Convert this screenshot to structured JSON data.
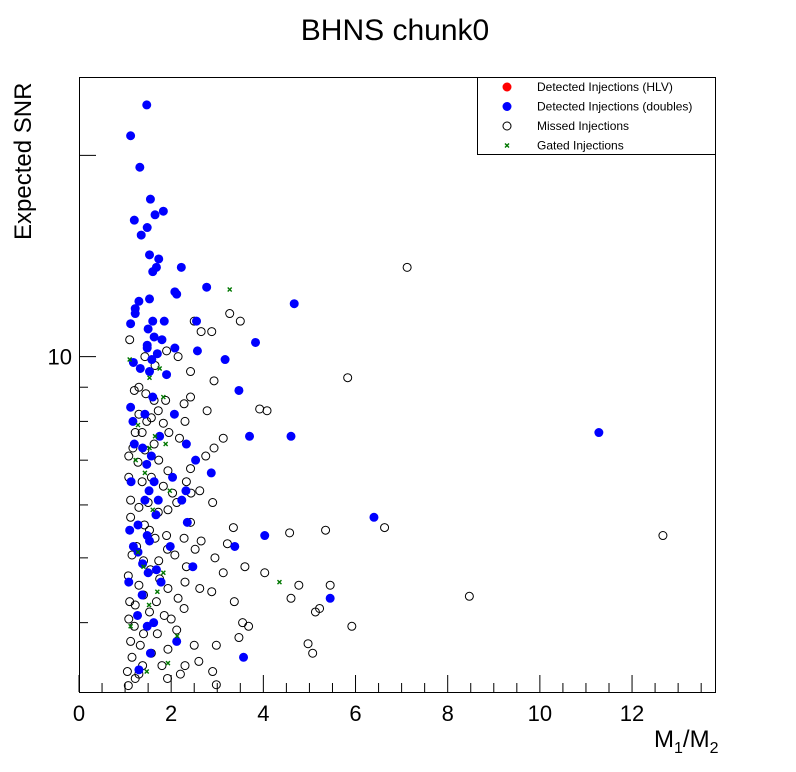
{
  "chart_data": {
    "type": "scatter",
    "title": "BHNS chunk0",
    "xlabel": "M",
    "xlabel_sub1": "1",
    "xlabel_sep": "/M",
    "xlabel_sub2": "2",
    "ylabel": "Expected SNR",
    "xlim": [
      0,
      13.8
    ],
    "ylim": [
      3.15,
      26.2
    ],
    "yscale": "log",
    "x_ticks": [
      0,
      2,
      4,
      6,
      8,
      10,
      12
    ],
    "y_ticks_labeled": [
      10
    ],
    "grid": false,
    "legend_position": "top-right",
    "colors": {
      "hlv": "#ff0000",
      "doubles": "#0000ff",
      "missed": "#000000",
      "gated": "#007700"
    },
    "series": [
      {
        "name": "Detected Injections (HLV)",
        "marker": "filled-circle",
        "points": []
      },
      {
        "name": "Detected Injections (doubles)",
        "marker": "filled-circle",
        "points": [
          [
            1.47,
            23.8
          ],
          [
            1.12,
            21.4
          ],
          [
            1.32,
            19.2
          ],
          [
            1.55,
            17.2
          ],
          [
            1.65,
            16.3
          ],
          [
            1.2,
            16.0
          ],
          [
            1.83,
            16.5
          ],
          [
            1.48,
            15.6
          ],
          [
            1.35,
            15.2
          ],
          [
            1.53,
            14.2
          ],
          [
            1.73,
            14.0
          ],
          [
            1.68,
            13.6
          ],
          [
            1.6,
            13.4
          ],
          [
            2.22,
            13.6
          ],
          [
            2.08,
            12.5
          ],
          [
            2.77,
            12.7
          ],
          [
            2.12,
            12.4
          ],
          [
            1.53,
            12.2
          ],
          [
            1.22,
            11.6
          ],
          [
            1.6,
            11.3
          ],
          [
            1.85,
            11.3
          ],
          [
            2.55,
            11.3
          ],
          [
            4.67,
            12.0
          ],
          [
            1.3,
            12.1
          ],
          [
            1.22,
            11.8
          ],
          [
            1.12,
            11.2
          ],
          [
            1.5,
            11.0
          ],
          [
            1.63,
            10.7
          ],
          [
            1.48,
            10.4
          ],
          [
            1.8,
            10.6
          ],
          [
            2.57,
            10.2
          ],
          [
            1.48,
            10.3
          ],
          [
            1.7,
            10.1
          ],
          [
            2.08,
            10.3
          ],
          [
            3.17,
            9.9
          ],
          [
            3.83,
            10.5
          ],
          [
            1.18,
            9.8
          ],
          [
            1.33,
            9.6
          ],
          [
            1.53,
            9.5
          ],
          [
            1.9,
            9.4
          ],
          [
            1.58,
            9.9
          ],
          [
            3.47,
            8.9
          ],
          [
            1.12,
            8.4
          ],
          [
            1.43,
            8.2
          ],
          [
            1.17,
            8.0
          ],
          [
            2.07,
            8.2
          ],
          [
            1.6,
            8.7
          ],
          [
            3.7,
            7.6
          ],
          [
            4.6,
            7.6
          ],
          [
            1.75,
            7.6
          ],
          [
            2.33,
            7.4
          ],
          [
            1.2,
            7.4
          ],
          [
            1.57,
            7.1
          ],
          [
            11.28,
            7.7
          ],
          [
            1.38,
            7.3
          ],
          [
            2.53,
            7.0
          ],
          [
            2.87,
            6.7
          ],
          [
            1.47,
            6.9
          ],
          [
            2.03,
            6.6
          ],
          [
            1.13,
            6.5
          ],
          [
            1.63,
            6.5
          ],
          [
            2.32,
            6.3
          ],
          [
            1.52,
            6.3
          ],
          [
            1.72,
            6.1
          ],
          [
            1.43,
            6.1
          ],
          [
            2.23,
            6.1
          ],
          [
            1.67,
            5.8
          ],
          [
            6.4,
            5.75
          ],
          [
            2.35,
            5.65
          ],
          [
            1.28,
            5.6
          ],
          [
            4.03,
            5.4
          ],
          [
            1.1,
            5.5
          ],
          [
            1.48,
            5.4
          ],
          [
            1.18,
            5.2
          ],
          [
            1.28,
            5.1
          ],
          [
            1.53,
            5.3
          ],
          [
            1.98,
            5.2
          ],
          [
            3.38,
            5.2
          ],
          [
            2.47,
            4.85
          ],
          [
            1.38,
            4.9
          ],
          [
            1.68,
            4.8
          ],
          [
            1.78,
            4.6
          ],
          [
            5.45,
            4.35
          ],
          [
            1.08,
            4.6
          ],
          [
            1.5,
            4.75
          ],
          [
            1.37,
            4.4
          ],
          [
            1.27,
            4.1
          ],
          [
            1.62,
            4.0
          ],
          [
            1.48,
            3.95
          ],
          [
            2.12,
            3.75
          ],
          [
            3.57,
            3.55
          ],
          [
            1.3,
            3.4
          ],
          [
            1.55,
            3.6
          ]
        ]
      },
      {
        "name": "Missed Injections",
        "marker": "open-circle",
        "points": [
          [
            7.12,
            13.6
          ],
          [
            2.5,
            11.3
          ],
          [
            2.65,
            10.9
          ],
          [
            3.27,
            11.6
          ],
          [
            2.88,
            10.9
          ],
          [
            1.1,
            10.6
          ],
          [
            3.5,
            11.3
          ],
          [
            2.15,
            10.0
          ],
          [
            1.9,
            10.2
          ],
          [
            1.43,
            10.0
          ],
          [
            2.42,
            9.5
          ],
          [
            1.65,
            9.7
          ],
          [
            2.93,
            9.2
          ],
          [
            5.83,
            9.3
          ],
          [
            1.3,
            9.0
          ],
          [
            1.2,
            8.9
          ],
          [
            1.45,
            8.8
          ],
          [
            1.63,
            8.6
          ],
          [
            2.42,
            8.7
          ],
          [
            1.72,
            8.3
          ],
          [
            2.28,
            8.5
          ],
          [
            1.88,
            8.6
          ],
          [
            2.78,
            8.3
          ],
          [
            1.57,
            8.1
          ],
          [
            1.3,
            8.2
          ],
          [
            1.47,
            8.0
          ],
          [
            3.92,
            8.35
          ],
          [
            4.08,
            8.3
          ],
          [
            2.3,
            8.0
          ],
          [
            1.83,
            7.95
          ],
          [
            1.22,
            7.7
          ],
          [
            1.37,
            7.7
          ],
          [
            1.95,
            7.7
          ],
          [
            3.13,
            7.55
          ],
          [
            2.18,
            7.55
          ],
          [
            1.63,
            7.4
          ],
          [
            1.17,
            7.3
          ],
          [
            2.93,
            7.3
          ],
          [
            1.43,
            7.25
          ],
          [
            1.08,
            7.1
          ],
          [
            1.73,
            7.0
          ],
          [
            2.75,
            7.1
          ],
          [
            1.28,
            6.95
          ],
          [
            2.42,
            6.8
          ],
          [
            1.93,
            6.75
          ],
          [
            1.08,
            6.6
          ],
          [
            1.57,
            6.6
          ],
          [
            2.33,
            6.5
          ],
          [
            1.37,
            6.5
          ],
          [
            1.83,
            6.4
          ],
          [
            2.62,
            6.3
          ],
          [
            2.03,
            6.25
          ],
          [
            2.43,
            6.25
          ],
          [
            1.12,
            6.1
          ],
          [
            1.5,
            6.05
          ],
          [
            2.12,
            6.05
          ],
          [
            2.9,
            6.05
          ],
          [
            1.3,
            5.95
          ],
          [
            1.93,
            5.9
          ],
          [
            1.72,
            5.85
          ],
          [
            1.12,
            5.75
          ],
          [
            2.42,
            5.65
          ],
          [
            1.42,
            5.6
          ],
          [
            1.53,
            5.5
          ],
          [
            3.35,
            5.55
          ],
          [
            1.9,
            5.4
          ],
          [
            2.28,
            5.35
          ],
          [
            1.65,
            5.35
          ],
          [
            2.65,
            5.3
          ],
          [
            4.57,
            5.45
          ],
          [
            6.63,
            5.55
          ],
          [
            5.35,
            5.5
          ],
          [
            12.67,
            5.4
          ],
          [
            3.22,
            5.25
          ],
          [
            1.25,
            5.2
          ],
          [
            1.92,
            5.15
          ],
          [
            2.52,
            5.15
          ],
          [
            1.15,
            5.05
          ],
          [
            2.08,
            5.05
          ],
          [
            2.95,
            5.0
          ],
          [
            1.4,
            4.95
          ],
          [
            1.73,
            4.95
          ],
          [
            3.6,
            4.85
          ],
          [
            2.33,
            4.85
          ],
          [
            1.55,
            4.8
          ],
          [
            4.03,
            4.75
          ],
          [
            1.07,
            4.7
          ],
          [
            3.13,
            4.75
          ],
          [
            1.75,
            4.65
          ],
          [
            2.3,
            4.6
          ],
          [
            4.77,
            4.55
          ],
          [
            1.3,
            4.55
          ],
          [
            1.93,
            4.5
          ],
          [
            2.62,
            4.5
          ],
          [
            5.45,
            4.55
          ],
          [
            1.4,
            4.4
          ],
          [
            2.15,
            4.35
          ],
          [
            2.88,
            4.45
          ],
          [
            1.1,
            4.3
          ],
          [
            1.68,
            4.3
          ],
          [
            8.47,
            4.38
          ],
          [
            4.6,
            4.35
          ],
          [
            3.37,
            4.3
          ],
          [
            1.22,
            4.25
          ],
          [
            2.28,
            4.2
          ],
          [
            1.53,
            4.15
          ],
          [
            5.22,
            4.2
          ],
          [
            2.0,
            4.05
          ],
          [
            1.08,
            4.05
          ],
          [
            1.85,
            4.1
          ],
          [
            3.55,
            4.0
          ],
          [
            1.2,
            3.95
          ],
          [
            2.12,
            3.9
          ],
          [
            1.4,
            3.85
          ],
          [
            5.13,
            4.15
          ],
          [
            5.92,
            3.95
          ],
          [
            3.68,
            3.95
          ],
          [
            1.7,
            3.85
          ],
          [
            3.47,
            3.8
          ],
          [
            1.12,
            3.75
          ],
          [
            2.5,
            3.7
          ],
          [
            1.33,
            3.7
          ],
          [
            4.97,
            3.72
          ],
          [
            1.93,
            3.65
          ],
          [
            2.98,
            3.7
          ],
          [
            1.57,
            3.6
          ],
          [
            1.15,
            3.55
          ],
          [
            5.07,
            3.6
          ],
          [
            1.8,
            3.45
          ],
          [
            2.3,
            3.45
          ],
          [
            2.6,
            3.5
          ],
          [
            1.38,
            3.45
          ],
          [
            1.3,
            3.35
          ],
          [
            1.05,
            3.38
          ],
          [
            2.9,
            3.38
          ],
          [
            2.2,
            3.35
          ],
          [
            1.92,
            3.3
          ],
          [
            1.07,
            3.22
          ],
          [
            2.98,
            3.23
          ],
          [
            1.22,
            3.3
          ]
        ]
      },
      {
        "name": "Gated Injections",
        "marker": "x",
        "points": [
          [
            3.27,
            12.6
          ],
          [
            1.1,
            9.9
          ],
          [
            1.75,
            9.6
          ],
          [
            1.53,
            9.3
          ],
          [
            1.83,
            8.7
          ],
          [
            1.28,
            7.9
          ],
          [
            1.65,
            7.6
          ],
          [
            1.53,
            7.3
          ],
          [
            1.23,
            7.0
          ],
          [
            1.88,
            7.4
          ],
          [
            1.43,
            6.7
          ],
          [
            1.97,
            6.3
          ],
          [
            1.6,
            5.9
          ],
          [
            1.28,
            5.1
          ],
          [
            4.35,
            4.6
          ],
          [
            1.4,
            4.85
          ],
          [
            1.83,
            4.75
          ],
          [
            1.7,
            4.45
          ],
          [
            1.52,
            4.25
          ],
          [
            1.12,
            3.95
          ],
          [
            2.13,
            3.82
          ],
          [
            1.93,
            3.48
          ],
          [
            1.47,
            3.38
          ]
        ]
      }
    ]
  }
}
